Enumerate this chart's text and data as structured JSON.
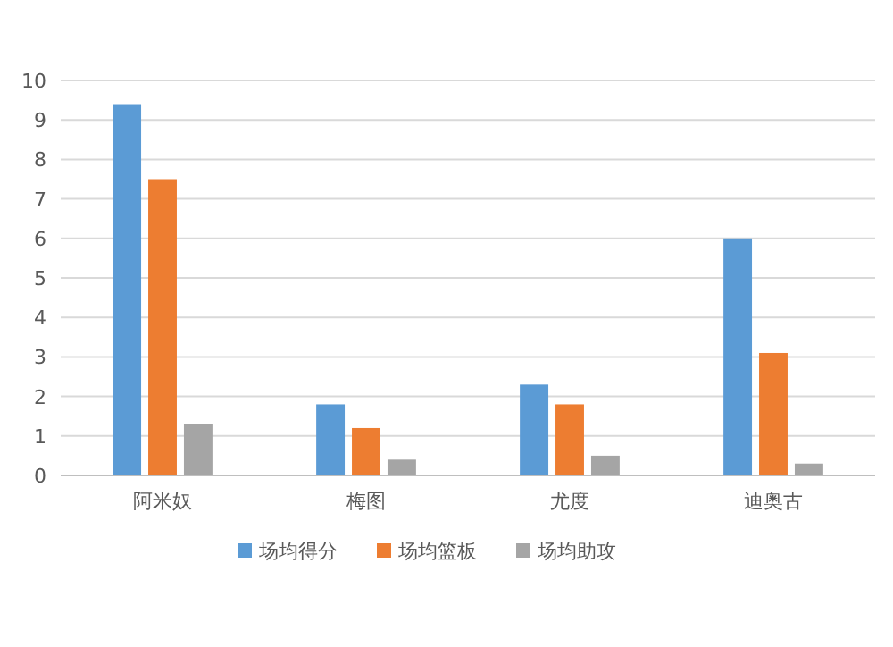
{
  "chart_data": {
    "type": "bar",
    "categories": [
      "阿米奴",
      "梅图",
      "尤度",
      "迪奥古"
    ],
    "series": [
      {
        "name": "场均得分",
        "color": "#5b9bd5",
        "values": [
          9.4,
          1.8,
          2.3,
          6.0
        ]
      },
      {
        "name": "场均篮板",
        "color": "#ed7d31",
        "values": [
          7.5,
          1.2,
          1.8,
          3.1
        ]
      },
      {
        "name": "场均助攻",
        "color": "#a5a5a5",
        "values": [
          1.3,
          0.4,
          0.5,
          0.3
        ]
      }
    ],
    "ylim": [
      0,
      10
    ],
    "yticks": [
      0,
      1,
      2,
      3,
      4,
      5,
      6,
      7,
      8,
      9,
      10
    ],
    "grid": "y",
    "legend": "bottom"
  }
}
